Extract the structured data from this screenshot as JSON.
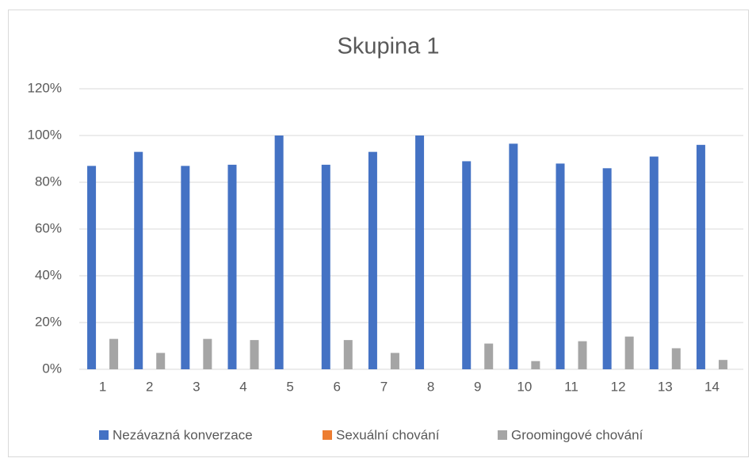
{
  "chart_data": {
    "type": "bar",
    "title": "Skupina 1",
    "categories": [
      "1",
      "2",
      "3",
      "4",
      "5",
      "6",
      "7",
      "8",
      "9",
      "10",
      "11",
      "12",
      "13",
      "14"
    ],
    "series": [
      {
        "name": "Nezávazná konverzace",
        "color": "#4472c4",
        "values": [
          87,
          93,
          87,
          87.5,
          100,
          87.5,
          93,
          100,
          89,
          96.5,
          88,
          86,
          91,
          96
        ]
      },
      {
        "name": "Sexuální chování",
        "color": "#ed7d31",
        "values": [
          0,
          0,
          0,
          0,
          0,
          0,
          0,
          0,
          0,
          0,
          0,
          0,
          0,
          0
        ]
      },
      {
        "name": "Groomingové chování",
        "color": "#a5a5a5",
        "values": [
          13,
          7,
          13,
          12.5,
          0,
          12.5,
          7,
          0,
          11,
          3.5,
          12,
          14,
          9,
          4
        ]
      }
    ],
    "ylim": [
      0,
      120
    ],
    "yticks": [
      {
        "value": 0,
        "label": "0%"
      },
      {
        "value": 20,
        "label": "20%"
      },
      {
        "value": 40,
        "label": "40%"
      },
      {
        "value": 60,
        "label": "60%"
      },
      {
        "value": 80,
        "label": "80%"
      },
      {
        "value": 100,
        "label": "100%"
      },
      {
        "value": 120,
        "label": "120%"
      }
    ],
    "grid": true,
    "legend": "bottom"
  }
}
